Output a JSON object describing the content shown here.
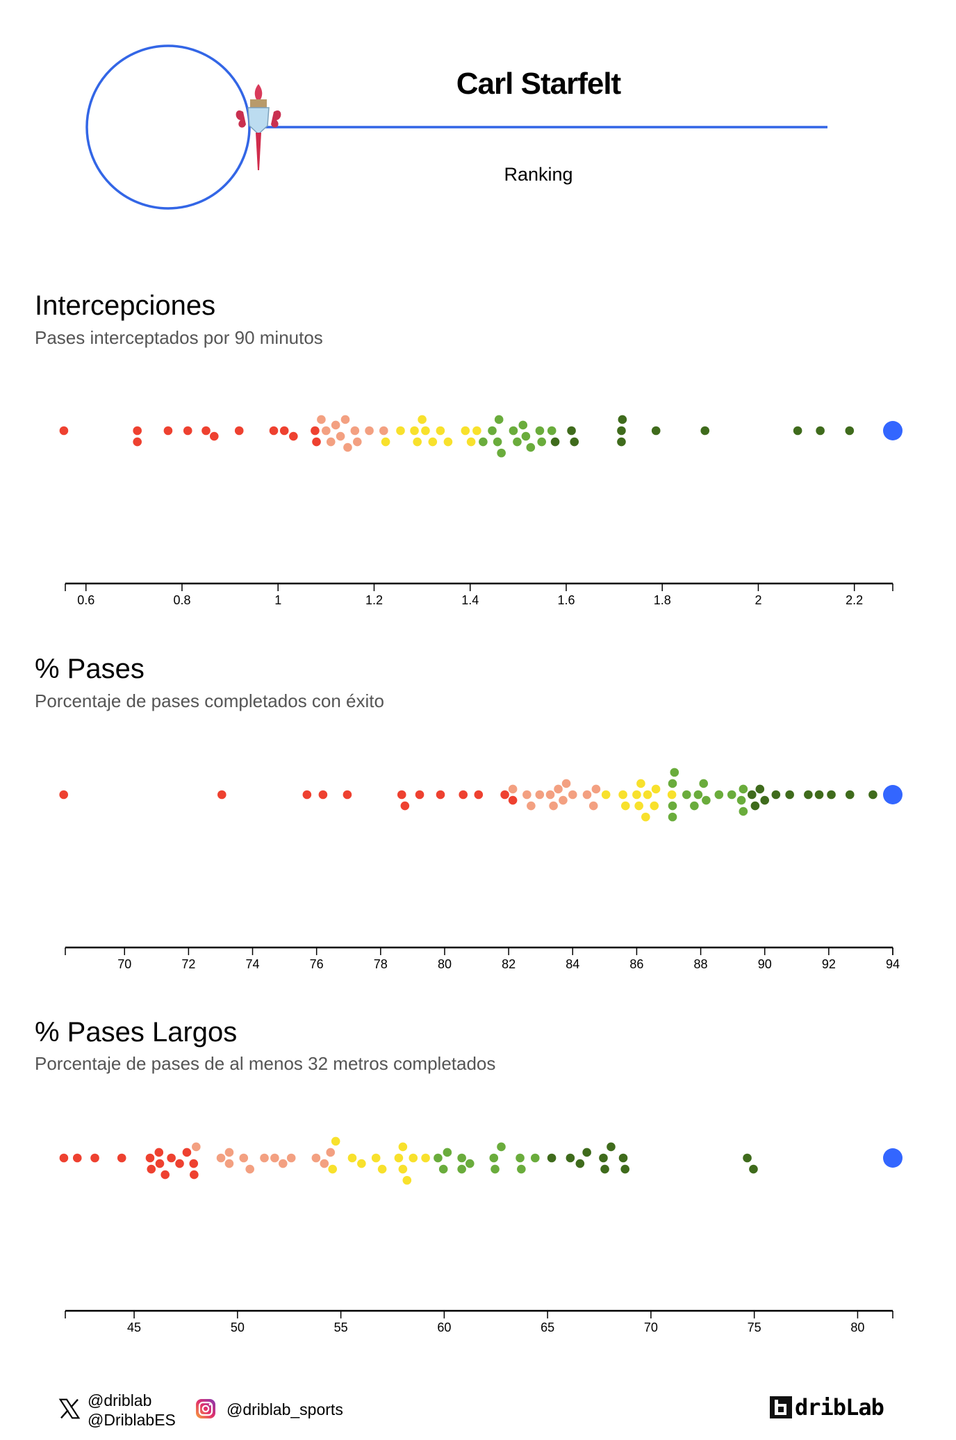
{
  "header": {
    "player_name": "Carl Starfelt",
    "subtitle": "Ranking",
    "accent_color": "#3366e6",
    "crest_icon": "celta-vigo-crest"
  },
  "palette": {
    "red": "#ee4130",
    "salmon": "#f3a081",
    "yellow": "#f8e12c",
    "light_green": "#6aac3c",
    "dark_green": "#3f6b1c",
    "player": "#3366ff"
  },
  "chart_data": [
    {
      "type": "scatter",
      "title": "Intercepciones",
      "subtitle": "Pases interceptados por 90 minutos",
      "xlim": [
        0.557,
        2.28
      ],
      "ticks": [
        0.6,
        0.8,
        1,
        1.2,
        1.4,
        1.6,
        1.8,
        2,
        2.2
      ],
      "tick_labels": [
        "0.6",
        "0.8",
        "1",
        "1.2",
        "1.4",
        "1.6",
        "1.8",
        "2",
        "2.2"
      ],
      "groups": [
        {
          "color": "red",
          "values": [
            0.554,
            0.707,
            0.707,
            0.771,
            0.812,
            0.85,
            0.867,
            0.919,
            0.991,
            1.013,
            1.032,
            1.077,
            1.08
          ]
        },
        {
          "color": "salmon",
          "values": [
            1.09,
            1.1,
            1.11,
            1.12,
            1.13,
            1.14,
            1.145,
            1.16,
            1.165,
            1.19,
            1.22
          ]
        },
        {
          "color": "yellow",
          "values": [
            1.224,
            1.255,
            1.284,
            1.29,
            1.3,
            1.307,
            1.322,
            1.338,
            1.354,
            1.39,
            1.402,
            1.414
          ]
        },
        {
          "color": "light_green",
          "values": [
            1.427,
            1.446,
            1.457,
            1.46,
            1.465,
            1.49,
            1.498,
            1.51,
            1.516,
            1.526,
            1.545,
            1.549,
            1.57
          ]
        },
        {
          "color": "dark_green",
          "values": [
            1.577,
            1.611,
            1.617,
            1.715,
            1.715,
            1.717,
            1.787,
            1.889,
            2.082,
            2.129,
            2.19
          ]
        }
      ],
      "player_value": 2.28
    },
    {
      "type": "scatter",
      "title": "% Pases",
      "subtitle": "Porcentaje de pases completados con éxito",
      "xlim": [
        68.15,
        94.0
      ],
      "ticks": [
        70,
        72,
        74,
        76,
        78,
        80,
        82,
        84,
        86,
        88,
        90,
        92,
        94
      ],
      "tick_labels": [
        "70",
        "72",
        "74",
        "76",
        "78",
        "80",
        "82",
        "84",
        "86",
        "88",
        "90",
        "92",
        "94"
      ],
      "groups": [
        {
          "color": "red",
          "values": [
            68.1,
            73.04,
            75.7,
            76.2,
            76.96,
            78.66,
            78.76,
            79.22,
            79.87,
            80.58,
            81.06,
            81.88,
            82.13
          ]
        },
        {
          "color": "salmon",
          "values": [
            82.13,
            82.57,
            82.7,
            82.97,
            83.3,
            83.4,
            83.55,
            83.7,
            83.8,
            84.0,
            84.45,
            84.65,
            84.73
          ]
        },
        {
          "color": "yellow",
          "values": [
            85.04,
            85.57,
            85.65,
            86.0,
            86.07,
            86.13,
            86.28,
            86.34,
            86.55,
            86.6,
            87.1
          ]
        },
        {
          "color": "light_green",
          "values": [
            87.12,
            87.12,
            87.12,
            87.18,
            87.56,
            87.8,
            87.92,
            88.09,
            88.17,
            88.57,
            88.97,
            89.27,
            89.33,
            89.33
          ]
        },
        {
          "color": "dark_green",
          "values": [
            89.6,
            89.7,
            89.85,
            90.0,
            90.35,
            90.78,
            91.36,
            91.7,
            92.08,
            92.66,
            93.38
          ]
        }
      ],
      "player_value": 94.0
    },
    {
      "type": "scatter",
      "title": "% Pases Largos",
      "subtitle": "Porcentaje de pases de al menos 32 metros completados",
      "xlim": [
        41.67,
        81.7
      ],
      "ticks": [
        45,
        50,
        55,
        60,
        65,
        70,
        75,
        80
      ],
      "tick_labels": [
        "45",
        "50",
        "55",
        "60",
        "65",
        "70",
        "75",
        "80"
      ],
      "groups": [
        {
          "color": "red",
          "values": [
            41.6,
            42.25,
            43.1,
            44.4,
            45.77,
            45.83,
            46.2,
            46.24,
            46.5,
            46.8,
            47.2,
            47.55,
            47.88,
            47.9
          ]
        },
        {
          "color": "salmon",
          "values": [
            48.0,
            49.2,
            49.6,
            49.6,
            50.3,
            50.6,
            51.3,
            51.8,
            52.2,
            52.6,
            53.8,
            54.2,
            54.5
          ]
        },
        {
          "color": "yellow",
          "values": [
            54.6,
            54.75,
            55.55,
            56.0,
            56.7,
            57.0,
            57.8,
            58.0,
            58.0,
            58.2,
            58.5,
            59.1
          ]
        },
        {
          "color": "light_green",
          "values": [
            59.7,
            59.96,
            60.15,
            60.85,
            60.85,
            61.24,
            62.4,
            62.46,
            62.76,
            63.67,
            63.73,
            64.4
          ]
        },
        {
          "color": "dark_green",
          "values": [
            65.2,
            66.1,
            66.57,
            66.9,
            67.7,
            67.77,
            68.07,
            68.66,
            68.75,
            74.66,
            74.96
          ]
        }
      ],
      "player_value": 81.7
    }
  ],
  "footer": {
    "x_icon": "x-twitter-icon",
    "instagram_icon": "instagram-icon",
    "x_handle_1": "@driblab",
    "x_handle_2": "@DriblabES",
    "instagram_handle": "@driblab_sports",
    "logo_text": "dribLab"
  }
}
